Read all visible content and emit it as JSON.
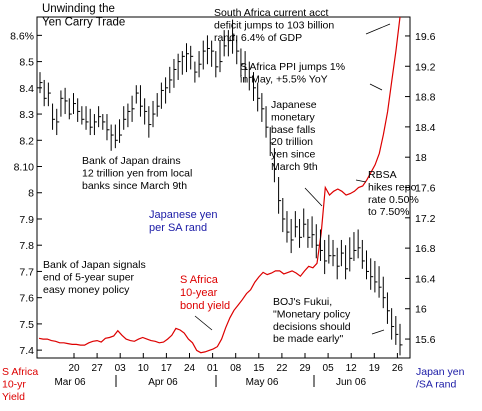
{
  "chart_data": {
    "type": "line",
    "title": "Unwinding the\nYen Carry Trade",
    "left_axis_label": "S Africa\n10-yr\nYield",
    "right_axis_label": "Japan yen\n/SA rand",
    "left_ylim": [
      7.37,
      8.67
    ],
    "right_ylim": [
      15.35,
      19.85
    ],
    "left_ticks": [
      "7.4",
      "7.5",
      "7.6",
      "7.7",
      "7.8",
      "7.9",
      "8",
      "8.10",
      "8.2",
      "8.3",
      "8.4",
      "8.5",
      "8.6%"
    ],
    "right_ticks": [
      "15.6",
      "16",
      "16.4",
      "16.8",
      "17.2",
      "17.6",
      "18",
      "18.4",
      "18.8",
      "19.2",
      "19.6"
    ],
    "day_ticks": [
      "20",
      "27",
      "03",
      "10",
      "17",
      "24",
      "01",
      "08",
      "15",
      "22",
      "29",
      "05",
      "12",
      "19",
      "26"
    ],
    "month_labels": [
      "Mar 06",
      "Apr 06",
      "May 06",
      "Jun 06"
    ],
    "colors": {
      "yield": "#dd0000",
      "yen": "#000000",
      "yield_label": "#dd0000",
      "yen_label": "#1a1aa6"
    },
    "series": [
      {
        "name": "Japanese yen\nper SA rand",
        "axis": "right",
        "style": "hlc-bars",
        "bars": [
          [
            8.46,
            8.38,
            8.42
          ],
          [
            8.43,
            8.33,
            8.36
          ],
          [
            8.42,
            8.33,
            8.38
          ],
          [
            8.34,
            8.24,
            8.28
          ],
          [
            8.32,
            8.22,
            8.27
          ],
          [
            8.39,
            8.29,
            8.36
          ],
          [
            8.4,
            8.3,
            8.35
          ],
          [
            8.36,
            8.28,
            8.3
          ],
          [
            8.38,
            8.3,
            8.34
          ],
          [
            8.36,
            8.27,
            8.31
          ],
          [
            8.33,
            8.26,
            8.28
          ],
          [
            8.33,
            8.24,
            8.27
          ],
          [
            8.32,
            8.22,
            8.25
          ],
          [
            8.3,
            8.22,
            8.27
          ],
          [
            8.33,
            8.25,
            8.29
          ],
          [
            8.3,
            8.24,
            8.27
          ],
          [
            8.3,
            8.2,
            8.24
          ],
          [
            8.26,
            8.16,
            8.22
          ],
          [
            8.26,
            8.17,
            8.2
          ],
          [
            8.28,
            8.19,
            8.22
          ],
          [
            8.33,
            8.24,
            8.28
          ],
          [
            8.34,
            8.25,
            8.31
          ],
          [
            8.37,
            8.27,
            8.32
          ],
          [
            8.41,
            8.34,
            8.38
          ],
          [
            8.41,
            8.29,
            8.33
          ],
          [
            8.36,
            8.26,
            8.31
          ],
          [
            8.33,
            8.21,
            8.26
          ],
          [
            8.35,
            8.25,
            8.3
          ],
          [
            8.38,
            8.29,
            8.33
          ],
          [
            8.42,
            8.32,
            8.39
          ],
          [
            8.44,
            8.34,
            8.4
          ],
          [
            8.48,
            8.38,
            8.43
          ],
          [
            8.51,
            8.4,
            8.47
          ],
          [
            8.53,
            8.43,
            8.5
          ],
          [
            8.54,
            8.45,
            8.52
          ],
          [
            8.57,
            8.46,
            8.53
          ],
          [
            8.56,
            8.47,
            8.52
          ],
          [
            8.5,
            8.42,
            8.46
          ],
          [
            8.54,
            8.44,
            8.49
          ],
          [
            8.58,
            8.47,
            8.54
          ],
          [
            8.6,
            8.49,
            8.55
          ],
          [
            8.58,
            8.48,
            8.54
          ],
          [
            8.54,
            8.44,
            8.48
          ],
          [
            8.58,
            8.46,
            8.5
          ],
          [
            8.62,
            8.52,
            8.56
          ],
          [
            8.62,
            8.52,
            8.58
          ],
          [
            8.66,
            8.53,
            8.6
          ],
          [
            8.6,
            8.49,
            8.54
          ],
          [
            8.55,
            8.44,
            8.49
          ],
          [
            8.54,
            8.42,
            8.47
          ],
          [
            8.5,
            8.39,
            8.44
          ],
          [
            8.46,
            8.35,
            8.4
          ],
          [
            8.42,
            8.31,
            8.36
          ],
          [
            8.38,
            8.27,
            8.32
          ],
          [
            8.33,
            8.21,
            8.25
          ],
          [
            8.25,
            8.14,
            8.19
          ],
          [
            8.17,
            8.04,
            8.09
          ],
          [
            8.06,
            7.92,
            7.97
          ],
          [
            7.98,
            7.85,
            7.9
          ],
          [
            7.93,
            7.81,
            7.85
          ],
          [
            7.9,
            7.77,
            7.82
          ],
          [
            7.93,
            7.83,
            7.87
          ],
          [
            7.9,
            7.79,
            7.83
          ],
          [
            7.94,
            7.83,
            7.88
          ],
          [
            7.9,
            7.79,
            7.83
          ],
          [
            7.91,
            7.79,
            7.84
          ],
          [
            7.88,
            7.75,
            7.8
          ],
          [
            7.86,
            7.74,
            7.78
          ],
          [
            7.82,
            7.69,
            7.74
          ],
          [
            7.84,
            7.73,
            7.76
          ],
          [
            7.82,
            7.72,
            7.76
          ],
          [
            7.79,
            7.67,
            7.72
          ],
          [
            7.82,
            7.72,
            7.77
          ],
          [
            7.8,
            7.67,
            7.71
          ],
          [
            7.83,
            7.7,
            7.75
          ],
          [
            7.85,
            7.74,
            7.78
          ],
          [
            7.86,
            7.75,
            7.79
          ],
          [
            7.82,
            7.71,
            7.74
          ],
          [
            7.78,
            7.67,
            7.7
          ],
          [
            7.75,
            7.63,
            7.68
          ],
          [
            7.74,
            7.62,
            7.66
          ],
          [
            7.72,
            7.6,
            7.64
          ],
          [
            7.68,
            7.56,
            7.6
          ],
          [
            7.62,
            7.5,
            7.55
          ],
          [
            7.56,
            7.44,
            7.49
          ],
          [
            7.53,
            7.42,
            7.46
          ],
          [
            7.5,
            7.38,
            7.42
          ]
        ]
      },
      {
        "name": "S Africa\n10-year\nbond yield",
        "axis": "left",
        "style": "line",
        "values": [
          15.61,
          15.6,
          15.6,
          15.58,
          15.57,
          15.55,
          15.55,
          15.54,
          15.53,
          15.53,
          15.52,
          15.52,
          15.55,
          15.57,
          15.58,
          15.56,
          15.61,
          15.62,
          15.64,
          15.71,
          15.65,
          15.6,
          15.58,
          15.57,
          15.6,
          15.62,
          15.6,
          15.58,
          15.57,
          15.55,
          15.56,
          15.6,
          15.65,
          15.74,
          15.72,
          15.68,
          15.6,
          15.55,
          15.45,
          15.42,
          15.43,
          15.45,
          15.47,
          15.5,
          15.6,
          15.75,
          15.88,
          15.98,
          16.05,
          16.12,
          16.2,
          16.25,
          16.35,
          16.42,
          16.48,
          16.45,
          16.47,
          16.5,
          16.5,
          16.46,
          16.48,
          16.5,
          16.47,
          16.43,
          16.5,
          16.56,
          16.54,
          16.6,
          17.0,
          17.6,
          17.5,
          17.55,
          17.58,
          17.55,
          17.5,
          17.52,
          17.55,
          17.6,
          17.62,
          17.7,
          17.8,
          17.9,
          18.05,
          18.3,
          18.6,
          19.0,
          19.4,
          19.85
        ]
      }
    ],
    "annotations": [
      "South Africa current acct\ndeficit jumps to 103 billion\nrand, 6.4% of GDP",
      "S Africa PPI jumps 1%\nin May, +5.5% YoY",
      "Japanese\nmonetary\nbase falls\n20 trillion\nyen since\nMarch 9th",
      "Bank of Japan drains\n12 trillion yen from local\nbanks since March 9th",
      "RBSA\nhikes repo\nrate 0.50%\nto 7.50%",
      "Bank of Japan signals\nend of 5-year super\neasy money policy",
      "BOJ's Fukui,\n\"Monetary policy\ndecisions should\nbe made early\""
    ]
  }
}
